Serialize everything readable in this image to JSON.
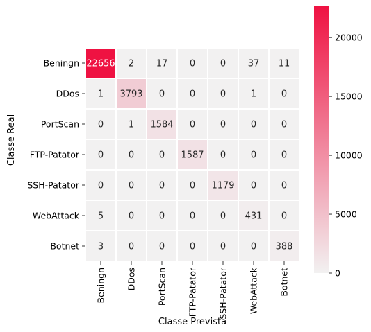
{
  "chart_data": {
    "type": "heatmap",
    "title": "",
    "xlabel": "Classe Prevista",
    "ylabel": "Classe Real",
    "x_categories": [
      "Beningn",
      "DDos",
      "PortScan",
      "FTP-Patator",
      "SSH-Patator",
      "WebAttack",
      "Botnet"
    ],
    "y_categories": [
      "Beningn",
      "DDos",
      "PortScan",
      "FTP-Patator",
      "SSH-Patator",
      "WebAttack",
      "Botnet"
    ],
    "values": [
      [
        22656,
        2,
        17,
        0,
        0,
        37,
        11
      ],
      [
        1,
        3793,
        0,
        0,
        0,
        1,
        0
      ],
      [
        0,
        1,
        1584,
        0,
        0,
        0,
        0
      ],
      [
        0,
        0,
        0,
        1587,
        0,
        0,
        0
      ],
      [
        0,
        0,
        0,
        0,
        1179,
        0,
        0
      ],
      [
        5,
        0,
        0,
        0,
        0,
        431,
        0
      ],
      [
        3,
        0,
        0,
        0,
        0,
        0,
        388
      ]
    ],
    "colorbar": {
      "min": 0,
      "max": 22656,
      "ticks": [
        0,
        5000,
        10000,
        15000,
        20000
      ],
      "color_low": "#f2f1f1",
      "color_high": "#ef1242"
    },
    "grid": false,
    "legend": "colorbar-right"
  }
}
